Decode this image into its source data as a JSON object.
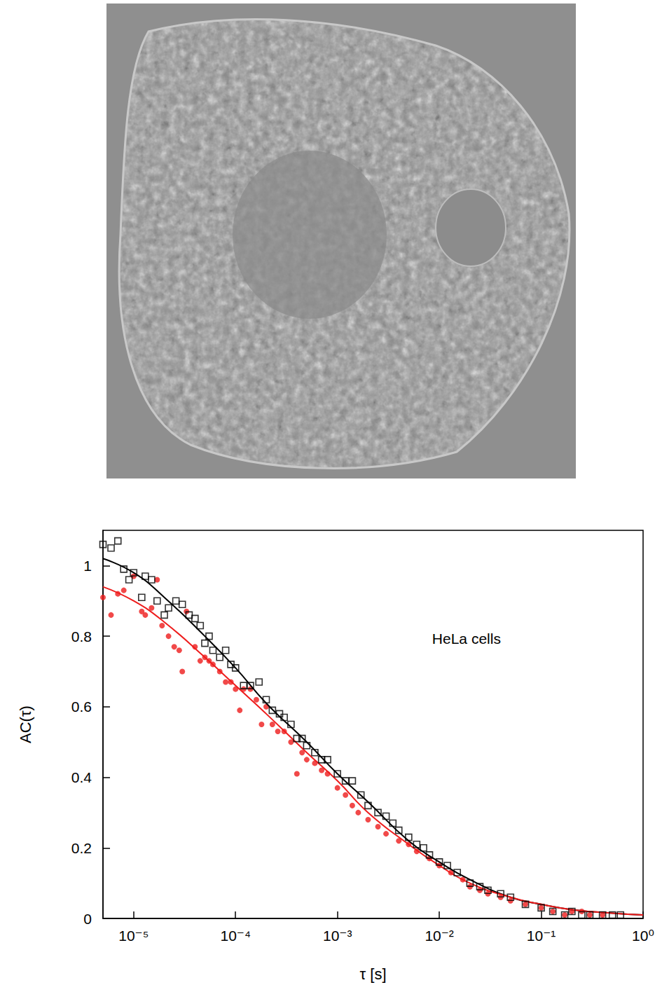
{
  "chart_data": {
    "type": "scatter",
    "xlabel": "τ [s]",
    "ylabel": "AC(τ)",
    "annotations": [
      {
        "text": "HeLa cells",
        "x": 0.0085,
        "y": 0.79
      }
    ],
    "log": "x",
    "grid": false,
    "xlim": [
      5e-06,
      1
    ],
    "ylim": [
      0,
      1.1
    ],
    "xticks": [
      {
        "value": 1e-05,
        "label": "10⁻⁵"
      },
      {
        "value": 0.0001,
        "label": "10⁻⁴"
      },
      {
        "value": 0.001,
        "label": "10⁻³"
      },
      {
        "value": 0.01,
        "label": "10⁻²"
      },
      {
        "value": 0.1,
        "label": "10⁻¹"
      },
      {
        "value": 1,
        "label": "10⁰"
      }
    ],
    "yticks": [
      0,
      0.2,
      0.4,
      0.6,
      0.8,
      1
    ],
    "series": [
      {
        "type": "scatter",
        "color": "#000000",
        "marker": "square-open",
        "x": [
          5e-06,
          6e-06,
          7e-06,
          8e-06,
          9e-06,
          1e-05,
          1.2e-05,
          1.3e-05,
          1.5e-05,
          1.7e-05,
          2e-05,
          2.2e-05,
          2.6e-05,
          3e-05,
          3.5e-05,
          4e-05,
          4.5e-05,
          5e-05,
          5.5e-05,
          6e-05,
          7e-05,
          8e-05,
          9e-05,
          0.0001,
          0.00012,
          0.00014,
          0.00017,
          0.0002,
          0.00023,
          0.00027,
          0.0003,
          0.00035,
          0.0004,
          0.00045,
          0.0005,
          0.0006,
          0.0007,
          0.0008,
          0.001,
          0.0012,
          0.0014,
          0.0017,
          0.002,
          0.0025,
          0.003,
          0.0035,
          0.004,
          0.005,
          0.006,
          0.007,
          0.008,
          0.01,
          0.012,
          0.015,
          0.02,
          0.025,
          0.03,
          0.04,
          0.05,
          0.07,
          0.1,
          0.13,
          0.17,
          0.2,
          0.25,
          0.3,
          0.4,
          0.5,
          0.6
        ],
        "values": [
          1.06,
          1.05,
          1.07,
          0.99,
          0.96,
          0.98,
          0.91,
          0.97,
          0.96,
          0.9,
          0.86,
          0.88,
          0.9,
          0.89,
          0.86,
          0.85,
          0.83,
          0.78,
          0.8,
          0.76,
          0.74,
          0.76,
          0.72,
          0.71,
          0.66,
          0.66,
          0.67,
          0.62,
          0.59,
          0.58,
          0.57,
          0.55,
          0.51,
          0.51,
          0.49,
          0.47,
          0.45,
          0.45,
          0.41,
          0.39,
          0.39,
          0.35,
          0.32,
          0.3,
          0.29,
          0.27,
          0.25,
          0.23,
          0.21,
          0.2,
          0.18,
          0.16,
          0.15,
          0.13,
          0.1,
          0.09,
          0.08,
          0.07,
          0.06,
          0.04,
          0.03,
          0.02,
          0.01,
          0.02,
          0.01,
          0.01,
          0.01,
          0.01,
          0.01
        ]
      },
      {
        "type": "scatter",
        "color": "#ee1c1c",
        "marker": "circle",
        "x": [
          5e-06,
          6e-06,
          7e-06,
          8e-06,
          1e-05,
          1.2e-05,
          1.3e-05,
          1.5e-05,
          1.7e-05,
          1.9e-05,
          2.2e-05,
          2.5e-05,
          2.8e-05,
          3e-05,
          3.3e-05,
          4e-05,
          4.5e-05,
          5e-05,
          5.5e-05,
          6e-05,
          7e-05,
          8e-05,
          9e-05,
          0.0001,
          0.00011,
          0.00012,
          0.00014,
          0.00016,
          0.00018,
          0.0002,
          0.00023,
          0.00026,
          0.0003,
          0.00035,
          0.0004,
          0.00045,
          0.0005,
          0.0006,
          0.0007,
          0.0008,
          0.001,
          0.0012,
          0.0014,
          0.0016,
          0.002,
          0.0025,
          0.003,
          0.004,
          0.005,
          0.006,
          0.008,
          0.01,
          0.013,
          0.017,
          0.02,
          0.025,
          0.03,
          0.04,
          0.05,
          0.07,
          0.1,
          0.13,
          0.17,
          0.2,
          0.25,
          0.3,
          0.4
        ],
        "values": [
          0.91,
          0.86,
          0.92,
          0.93,
          0.97,
          0.87,
          0.86,
          0.88,
          0.96,
          0.83,
          0.8,
          0.77,
          0.76,
          0.7,
          0.87,
          0.77,
          0.73,
          0.74,
          0.73,
          0.72,
          0.7,
          0.67,
          0.67,
          0.65,
          0.59,
          0.65,
          0.65,
          0.62,
          0.55,
          0.6,
          0.55,
          0.53,
          0.53,
          0.5,
          0.41,
          0.47,
          0.45,
          0.44,
          0.42,
          0.41,
          0.37,
          0.35,
          0.32,
          0.3,
          0.28,
          0.26,
          0.24,
          0.22,
          0.21,
          0.19,
          0.17,
          0.15,
          0.13,
          0.11,
          0.09,
          0.08,
          0.07,
          0.06,
          0.05,
          0.04,
          0.03,
          0.02,
          0.01,
          0.02,
          0.02,
          0.01,
          0.01
        ]
      },
      {
        "type": "line",
        "color": "#000000",
        "line_style": "solid",
        "x": [
          5e-06,
          1e-05,
          2e-05,
          5e-05,
          0.0001,
          0.0002,
          0.0005,
          0.001,
          0.002,
          0.005,
          0.01,
          0.02,
          0.05,
          0.1,
          0.2,
          0.5,
          1
        ],
        "values": [
          1.02,
          0.98,
          0.91,
          0.8,
          0.71,
          0.61,
          0.5,
          0.41,
          0.33,
          0.22,
          0.16,
          0.11,
          0.06,
          0.04,
          0.025,
          0.015,
          0.01
        ]
      },
      {
        "type": "line",
        "color": "#ee1c1c",
        "line_style": "solid",
        "x": [
          5e-06,
          1e-05,
          2e-05,
          5e-05,
          0.0001,
          0.0002,
          0.0005,
          0.001,
          0.002,
          0.005,
          0.01,
          0.02,
          0.05,
          0.1,
          0.2,
          0.5,
          1
        ],
        "values": [
          0.94,
          0.9,
          0.84,
          0.74,
          0.66,
          0.58,
          0.47,
          0.39,
          0.3,
          0.21,
          0.15,
          0.1,
          0.06,
          0.04,
          0.025,
          0.015,
          0.01
        ]
      }
    ]
  }
}
